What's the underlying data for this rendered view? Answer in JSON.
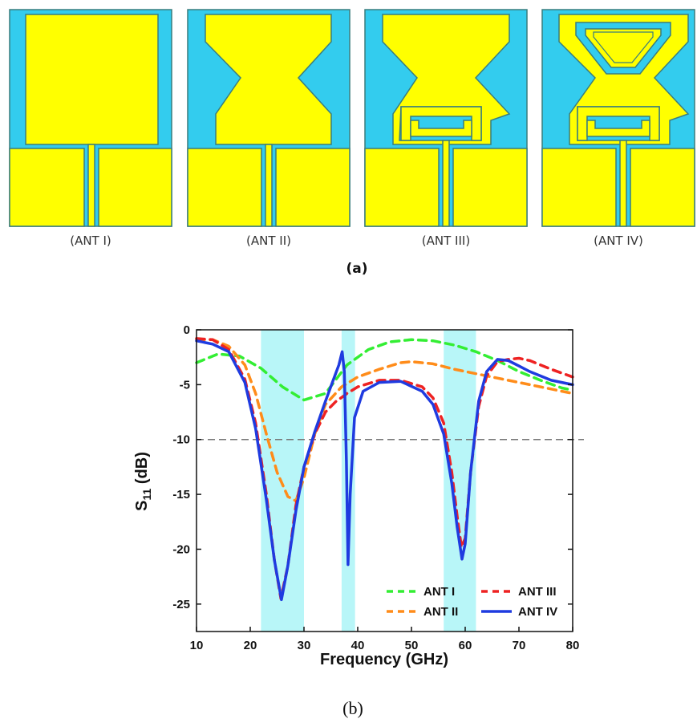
{
  "panel_a": {
    "label": "(a)",
    "antennas": [
      {
        "label": "(ANT I)"
      },
      {
        "label": "(ANT II)"
      },
      {
        "label": "(ANT III)"
      },
      {
        "label": "(ANT IV)"
      }
    ],
    "colors": {
      "substrate": "#33ccee",
      "metal": "#ffff00",
      "outline": "#3a7d7d"
    }
  },
  "panel_b_label": "(b)",
  "chart_data": {
    "type": "line",
    "xlabel": "Frequency (GHz)",
    "ylabel_main": "S",
    "ylabel_sub": "11",
    "ylabel_unit": " (dB)",
    "xlim": [
      10,
      80
    ],
    "ylim": [
      -27.5,
      0
    ],
    "xticks": [
      10,
      20,
      30,
      40,
      50,
      60,
      70,
      80
    ],
    "yticks": [
      0,
      -5,
      -10,
      -15,
      -20,
      -25
    ],
    "reference_line": -10,
    "highlight_bands": [
      [
        22,
        30
      ],
      [
        37,
        39.5
      ],
      [
        56,
        62
      ]
    ],
    "highlight_color": "#b8f6f8",
    "legend_position": "bottom-right",
    "series": [
      {
        "name": "ANT I",
        "color": "#33ee33",
        "style": "dashed",
        "x": [
          10,
          14,
          18,
          22,
          26,
          30,
          34,
          38,
          42,
          46,
          50,
          54,
          58,
          62,
          66,
          70,
          74,
          78,
          80
        ],
        "y": [
          -3.0,
          -2.2,
          -2.4,
          -3.5,
          -5.2,
          -6.4,
          -5.8,
          -3.2,
          -1.8,
          -1.1,
          -0.9,
          -1.0,
          -1.4,
          -2.0,
          -2.8,
          -3.8,
          -4.6,
          -5.3,
          -5.5
        ]
      },
      {
        "name": "ANT II",
        "color": "#ff8c1a",
        "style": "dashed",
        "x": [
          10,
          13,
          16,
          19,
          21,
          23,
          25,
          27,
          28.5,
          30,
          32,
          34,
          37,
          40,
          44,
          48,
          50,
          54,
          58,
          62,
          66,
          70,
          74,
          78,
          80
        ],
        "y": [
          -0.9,
          -0.9,
          -1.5,
          -3.2,
          -5.8,
          -9.5,
          -13.0,
          -15.2,
          -15.6,
          -13.5,
          -9.5,
          -6.8,
          -5.2,
          -4.3,
          -3.6,
          -3.0,
          -2.9,
          -3.1,
          -3.6,
          -4.0,
          -4.4,
          -4.8,
          -5.2,
          -5.6,
          -5.8
        ]
      },
      {
        "name": "ANT III",
        "color": "#ee2222",
        "style": "dashed",
        "x": [
          10,
          13,
          16,
          19,
          21,
          23,
          24.5,
          25.7,
          27,
          28.5,
          30,
          32,
          34,
          36,
          37.5,
          38,
          40,
          44,
          48,
          52,
          54,
          56,
          57.5,
          58.5,
          59.3,
          60,
          61,
          62.5,
          64,
          66,
          68,
          70,
          72,
          76,
          80
        ],
        "y": [
          -0.8,
          -0.9,
          -1.8,
          -4.5,
          -8.5,
          -15.0,
          -21.0,
          -24.5,
          -21.5,
          -16.0,
          -12.5,
          -9.5,
          -7.5,
          -6.5,
          -6.0,
          -5.8,
          -5.2,
          -4.6,
          -4.6,
          -5.2,
          -6.2,
          -8.5,
          -13.0,
          -17.0,
          -19.8,
          -19.0,
          -13.0,
          -7.0,
          -4.2,
          -2.9,
          -2.7,
          -2.6,
          -2.8,
          -3.6,
          -4.3
        ]
      },
      {
        "name": "ANT IV",
        "color": "#1f3be0",
        "style": "solid",
        "x": [
          10,
          13,
          16,
          19,
          21,
          23,
          24.5,
          25.8,
          27,
          28.5,
          30,
          32,
          34,
          35.5,
          36.5,
          37.1,
          37.5,
          37.9,
          38.2,
          38.6,
          39.4,
          41,
          44,
          48,
          52,
          54,
          56,
          57.5,
          58.5,
          59.4,
          60,
          61,
          62.5,
          64,
          66,
          68,
          70,
          72,
          76,
          80
        ],
        "y": [
          -1.0,
          -1.3,
          -2.0,
          -4.8,
          -9.0,
          -15.5,
          -21.0,
          -24.6,
          -21.5,
          -16.5,
          -12.5,
          -9.3,
          -6.5,
          -4.5,
          -3.2,
          -2.0,
          -3.8,
          -12.0,
          -21.4,
          -15.0,
          -8.0,
          -5.6,
          -4.8,
          -4.7,
          -5.6,
          -6.8,
          -9.5,
          -14.0,
          -18.0,
          -20.9,
          -19.5,
          -13.0,
          -6.5,
          -3.8,
          -2.7,
          -2.8,
          -3.3,
          -3.8,
          -4.6,
          -5.0
        ]
      }
    ]
  }
}
